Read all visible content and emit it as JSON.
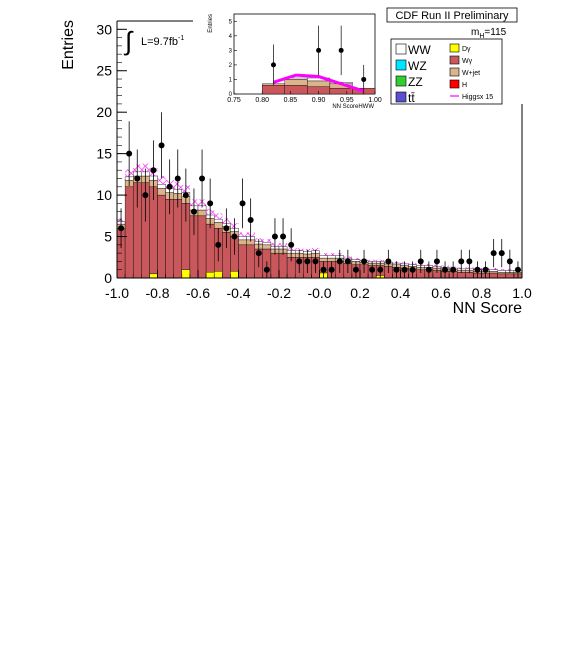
{
  "chart_data": [
    {
      "type": "bar",
      "panel": "main",
      "title": "CDF Run II Preliminary",
      "mass_label": "m",
      "mass_sub": "H",
      "mass_value": "=115",
      "lumi_label": "L=9.7fb",
      "lumi_sup": "-1",
      "xlabel": "NN Score",
      "ylabel": "Entries",
      "xlim": [
        -1.0,
        1.0
      ],
      "ylim": [
        0,
        31
      ],
      "x_ticks": [
        "-1.0",
        "-0.8",
        "-0.6",
        "-0.4",
        "-0.2",
        "-0.0",
        "0.2",
        "0.4",
        "0.6",
        "0.8",
        "1.0"
      ],
      "y_ticks": [
        "0",
        "5",
        "10",
        "15",
        "20",
        "25",
        "30"
      ],
      "bin_edges_start": -1.0,
      "bin_width": 0.04,
      "series": [
        {
          "name": "Wγ",
          "color": "#c8585c",
          "values": [
            6,
            11,
            11.5,
            11.5,
            11,
            10,
            9.5,
            9.5,
            9,
            7.5,
            7.5,
            6.5,
            6,
            5.5,
            5,
            4,
            4,
            3.5,
            3.5,
            3,
            3,
            2.5,
            2.5,
            2.5,
            2.5,
            2,
            2,
            2,
            1.8,
            1.6,
            1.6,
            1.5,
            1.5,
            1.4,
            1.3,
            1.2,
            1.1,
            1,
            1,
            0.9,
            0.8,
            0.8,
            0.7,
            0.7,
            0.6,
            0.6,
            0.6,
            0.5,
            0.5,
            0.5
          ]
        },
        {
          "name": "W+jet",
          "color": "#dcb48c",
          "values": [
            0.5,
            0.8,
            0.8,
            0.8,
            0.8,
            0.8,
            0.8,
            0.7,
            0.8,
            0.7,
            0.7,
            0.7,
            0.7,
            0.7,
            0.6,
            0.6,
            0.6,
            0.6,
            0.5,
            0.5,
            0.5,
            0.5,
            0.5,
            0.4,
            0.5,
            0.4,
            0.4,
            0.4,
            0.4,
            0.4,
            0.3,
            0.3,
            0.3,
            0.3,
            0.3,
            0.3,
            0.3,
            0.3,
            0.3,
            0.3,
            0.3,
            0.2,
            0.2,
            0.2,
            0.2,
            0.2,
            0.2,
            0.2,
            0.2,
            0.2
          ]
        },
        {
          "name": "WW",
          "color": "#ffffff",
          "values": [
            0.3,
            0.4,
            0.5,
            0.5,
            0.5,
            0.5,
            0.5,
            0.5,
            0.5,
            0.5,
            0.5,
            0.4,
            0.4,
            0.4,
            0.4,
            0.4,
            0.4,
            0.3,
            0.3,
            0.3,
            0.3,
            0.3,
            0.3,
            0.3,
            0.3,
            0.3,
            0.3,
            0.3,
            0.2,
            0.2,
            0.2,
            0.2,
            0.2,
            0.2,
            0.2,
            0.2,
            0.2,
            0.2,
            0.2,
            0.2,
            0.2,
            0.2,
            0.2,
            0.2,
            0.2,
            0.2,
            0.2,
            0.2,
            0.2,
            0.2
          ]
        },
        {
          "name": "Higgsx 15",
          "color": "#ff00ff",
          "values": [
            0.4,
            0.9,
            0.9,
            1.0,
            1.0,
            1.0,
            1.0,
            0.9,
            0.9,
            0.8,
            0.8,
            0.7,
            0.7,
            0.6,
            0.6,
            0.5,
            0.5,
            0.4,
            0.4,
            0.4,
            0.4,
            0.3,
            0.3,
            0.3,
            0.3,
            0.3,
            0.3,
            0.3,
            0.2,
            0.2,
            0.2,
            0.2,
            0.2,
            0.2,
            0.2,
            0.2,
            0.2,
            0.2,
            0.2,
            0.2,
            0.2,
            0.2,
            0.2,
            0.2,
            0.2,
            0.2,
            0.2,
            0.2,
            0.2,
            0.2
          ]
        },
        {
          "name": "Dγ",
          "color": "#ffff00",
          "points": [
            [
              -0.84,
              0.5
            ],
            [
              -0.68,
              1.0
            ],
            [
              -0.56,
              0.7
            ],
            [
              -0.52,
              0.8
            ],
            [
              -0.44,
              0.8
            ],
            [
              0.0,
              0.6
            ],
            [
              0.28,
              0.3
            ]
          ]
        },
        {
          "name": "Data",
          "color": "#000000",
          "x": [
            -0.98,
            -0.94,
            -0.9,
            -0.86,
            -0.82,
            -0.78,
            -0.74,
            -0.7,
            -0.66,
            -0.62,
            -0.58,
            -0.54,
            -0.5,
            -0.46,
            -0.42,
            -0.38,
            -0.34,
            -0.3,
            -0.26,
            -0.22,
            -0.18,
            -0.14,
            -0.1,
            -0.06,
            -0.02,
            0.02,
            0.06,
            0.1,
            0.14,
            0.18,
            0.22,
            0.26,
            0.3,
            0.34,
            0.38,
            0.42,
            0.46,
            0.5,
            0.54,
            0.58,
            0.62,
            0.66,
            0.7,
            0.74,
            0.78,
            0.82,
            0.86,
            0.9,
            0.94,
            0.98
          ],
          "y": [
            6,
            15,
            12,
            10,
            13,
            16,
            11,
            12,
            10,
            8,
            12,
            9,
            4,
            6,
            5,
            9,
            7,
            3,
            1,
            5,
            5,
            4,
            2,
            2,
            2,
            1,
            1,
            2,
            2,
            1,
            2,
            1,
            1,
            2,
            1,
            1,
            1,
            2,
            1,
            2,
            1,
            1,
            2,
            2,
            1,
            1,
            3,
            3,
            2,
            1
          ],
          "yerr": [
            2.4,
            3.9,
            3.5,
            3.2,
            3.6,
            4.0,
            3.3,
            3.5,
            3.2,
            2.8,
            3.5,
            3.0,
            2.0,
            2.4,
            2.2,
            3.0,
            2.6,
            1.7,
            1.0,
            2.2,
            2.2,
            2.0,
            1.4,
            1.4,
            1.4,
            1.0,
            1.0,
            1.4,
            1.4,
            1.0,
            1.4,
            1.0,
            1.0,
            1.4,
            1.0,
            1.0,
            1.0,
            1.4,
            1.0,
            1.4,
            1.0,
            1.0,
            1.4,
            1.4,
            1.0,
            1.0,
            1.7,
            1.7,
            1.4,
            1.0
          ]
        }
      ],
      "legend": {
        "placement": "top-right",
        "left_items": [
          {
            "label": "WW",
            "color": "#ffffff"
          },
          {
            "label": "WZ",
            "color": "#00e5ff"
          },
          {
            "label": "ZZ",
            "color": "#33cc33"
          },
          {
            "label": "tt̄",
            "color": "#5a4fcf"
          }
        ],
        "right_items": [
          {
            "label": "Dγ",
            "color": "#ffff00",
            "kind": "box"
          },
          {
            "label": "Wγ",
            "color": "#c8585c",
            "kind": "box"
          },
          {
            "label": "W+jet",
            "color": "#dcb48c",
            "kind": "box"
          },
          {
            "label": "H",
            "color": "#ff0000",
            "kind": "box"
          },
          {
            "label": "Higgsx 15",
            "color": "#ff00ff",
            "kind": "line"
          }
        ]
      }
    },
    {
      "type": "bar",
      "panel": "inset",
      "xlabel": "NN ScoreHWW",
      "ylabel": "Entries",
      "xlim": [
        0.75,
        1.0
      ],
      "ylim": [
        0,
        5.5
      ],
      "x_ticks": [
        "0.75",
        "0.80",
        "0.85",
        "0.90",
        "0.95",
        "1.00"
      ],
      "y_ticks": [
        "0",
        "1",
        "2",
        "3",
        "4",
        "5"
      ],
      "bin_edges_start": 0.8,
      "bin_width": 0.04,
      "series": [
        {
          "name": "Wγ",
          "color": "#c8585c",
          "values": [
            0.6,
            0.6,
            0.5,
            0.4,
            0.4
          ]
        },
        {
          "name": "W+jet",
          "color": "#dcb48c",
          "values": [
            0.1,
            0.4,
            0.4,
            0.3,
            0.0
          ]
        },
        {
          "name": "WW",
          "color": "#ffffff",
          "values": [
            0.0,
            0.1,
            0.2,
            0.1,
            0.0
          ]
        },
        {
          "name": "Higgsx 15",
          "color": "#ff00ff",
          "line_points": [
            [
              0.82,
              0.8
            ],
            [
              0.86,
              1.3
            ],
            [
              0.9,
              1.2
            ],
            [
              0.94,
              0.7
            ],
            [
              0.98,
              0.2
            ]
          ]
        },
        {
          "name": "Data",
          "color": "#000000",
          "x": [
            0.82,
            0.9,
            0.94,
            0.98
          ],
          "y": [
            2,
            3,
            3,
            1
          ],
          "yerr": [
            1.4,
            1.7,
            1.7,
            1.0
          ]
        }
      ]
    }
  ]
}
